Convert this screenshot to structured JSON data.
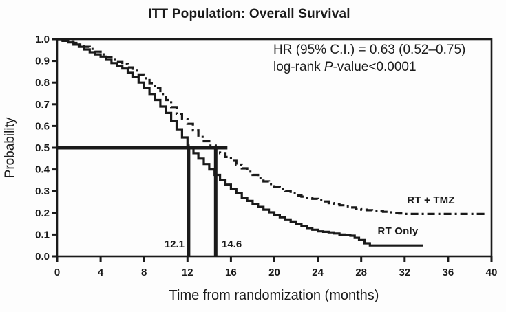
{
  "chart_data": {
    "type": "line",
    "subtype": "kaplan-meier-step",
    "title": "ITT Population: Overall Survival",
    "xlabel": "Time from randomization (months)",
    "ylabel": "Probability",
    "xlim": [
      0,
      40
    ],
    "ylim": [
      0.0,
      1.0
    ],
    "x_ticks": [
      0,
      4,
      8,
      12,
      16,
      20,
      24,
      28,
      32,
      36,
      40
    ],
    "x_tick_labels": [
      "0",
      "4",
      "8",
      "12",
      "16",
      "20",
      "24",
      "28",
      "32",
      "36",
      "40"
    ],
    "y_ticks": [
      0.0,
      0.1,
      0.2,
      0.3,
      0.4,
      0.5,
      0.6,
      0.7,
      0.8,
      0.9,
      1.0
    ],
    "y_tick_labels": [
      "0.0",
      "0.1",
      "0.2",
      "0.3",
      "0.4",
      "0.5",
      "0.6",
      "0.7",
      "0.8",
      "0.9",
      "1.0"
    ],
    "grid": false,
    "legend_position": "inline-right-of-curves",
    "colors": {
      "line": "#1a1a1a",
      "background": "#fdfdfd"
    },
    "annotation": {
      "line1": "HR (95% C.I.) = 0.63 (0.52–0.75)",
      "line2_prefix": "log-rank ",
      "line2_italic": "P",
      "line2_suffix": "-value<0.0001"
    },
    "medians": {
      "at_probability": 0.5,
      "rt_only_months": 12.1,
      "rt_tmz_months": 14.6,
      "labels": [
        "12.1",
        "14.6"
      ]
    },
    "series": [
      {
        "name": "RT + TMZ",
        "style": "dashed",
        "points": [
          [
            0,
            1.0
          ],
          [
            1,
            0.99
          ],
          [
            2,
            0.975
          ],
          [
            3,
            0.955
          ],
          [
            4,
            0.93
          ],
          [
            5,
            0.905
          ],
          [
            6,
            0.885
          ],
          [
            7,
            0.855
          ],
          [
            8,
            0.82
          ],
          [
            9,
            0.775
          ],
          [
            10,
            0.72
          ],
          [
            11,
            0.655
          ],
          [
            12,
            0.61
          ],
          [
            13,
            0.55
          ],
          [
            14,
            0.51
          ],
          [
            14.6,
            0.5
          ],
          [
            15,
            0.475
          ],
          [
            16,
            0.44
          ],
          [
            17,
            0.405
          ],
          [
            18,
            0.375
          ],
          [
            19,
            0.345
          ],
          [
            20,
            0.32
          ],
          [
            21,
            0.3
          ],
          [
            22,
            0.28
          ],
          [
            23,
            0.27
          ],
          [
            24,
            0.26
          ],
          [
            25,
            0.245
          ],
          [
            26,
            0.235
          ],
          [
            27,
            0.225
          ],
          [
            28,
            0.215
          ],
          [
            29,
            0.21
          ],
          [
            30,
            0.205
          ],
          [
            31,
            0.2
          ],
          [
            32,
            0.195
          ],
          [
            39.5,
            0.195
          ]
        ]
      },
      {
        "name": "RT Only",
        "style": "solid",
        "points": [
          [
            0,
            1.0
          ],
          [
            1,
            0.985
          ],
          [
            2,
            0.965
          ],
          [
            3,
            0.94
          ],
          [
            4,
            0.92
          ],
          [
            5,
            0.89
          ],
          [
            6,
            0.865
          ],
          [
            7,
            0.825
          ],
          [
            8,
            0.775
          ],
          [
            9,
            0.72
          ],
          [
            10,
            0.66
          ],
          [
            11,
            0.585
          ],
          [
            12,
            0.51
          ],
          [
            12.1,
            0.5
          ],
          [
            13,
            0.45
          ],
          [
            14,
            0.4
          ],
          [
            15,
            0.35
          ],
          [
            16,
            0.31
          ],
          [
            17,
            0.27
          ],
          [
            18,
            0.24
          ],
          [
            19,
            0.215
          ],
          [
            20,
            0.19
          ],
          [
            21,
            0.17
          ],
          [
            22,
            0.15
          ],
          [
            23,
            0.13
          ],
          [
            24,
            0.115
          ],
          [
            25,
            0.11
          ],
          [
            26,
            0.1
          ],
          [
            27,
            0.095
          ],
          [
            27.8,
            0.075
          ],
          [
            28.3,
            0.06
          ],
          [
            28.8,
            0.05
          ],
          [
            33.7,
            0.05
          ]
        ]
      }
    ]
  }
}
